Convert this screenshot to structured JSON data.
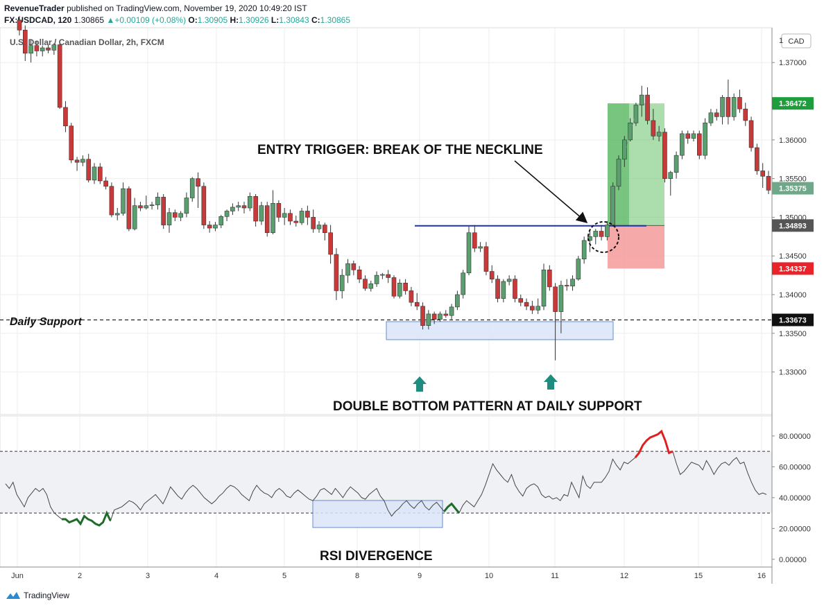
{
  "header": {
    "publisher": "RevenueTrader",
    "published_text": "published on TradingView.com, November 19, 2020 10:49:20 IST",
    "symbol": "FX:USDCAD, 120",
    "last": "1.30865",
    "change": "+0.00109 (+0.08%)",
    "o_label": "O:",
    "o": "1.30905",
    "h_label": "H:",
    "h": "1.30926",
    "l_label": "L:",
    "l": "1.30843",
    "c_label": "C:",
    "c": "1.30865"
  },
  "footer": {
    "brand": "TradingView"
  },
  "colors": {
    "up": "#5aa06e",
    "down": "#c83a3a",
    "blue_line": "#1f2fb4",
    "target_zone": "#66c16a",
    "stop_zone": "#f59a9a",
    "rsi_up": "#e02020",
    "rsi_down": "#1e6b2a",
    "box_fill": "#dbe6f8",
    "box_stroke": "#4a78c8"
  },
  "chart_data": [
    {
      "type": "candlestick",
      "title": "U.S. Dollar / Canadian Dollar, 2h, FXCM",
      "currency": "CAD",
      "ylim": [
        1.3245,
        1.3745
      ],
      "y_ticks": [
        "1.37000",
        "1.36000",
        "1.35500",
        "1.35000",
        "1.34500",
        "1.34000",
        "1.33500",
        "1.33000"
      ],
      "x_ticks": [
        "Jun",
        "2",
        "3",
        "4",
        "5",
        "8",
        "9",
        "10",
        "11",
        "12",
        "15",
        "16"
      ],
      "price_tags": [
        {
          "value": "1.36472",
          "color": "#1e9e3a"
        },
        {
          "value": "1.35375",
          "color": "#6fa889"
        },
        {
          "value": "1.34893",
          "color": "#555555"
        },
        {
          "value": "1.34337",
          "color": "#e8232a"
        },
        {
          "value": "1.33673",
          "color": "#111111"
        }
      ],
      "candles": [
        {
          "o": 1.3755,
          "h": 1.376,
          "l": 1.3735,
          "c": 1.3742
        },
        {
          "o": 1.3742,
          "h": 1.3748,
          "l": 1.3702,
          "c": 1.3712
        },
        {
          "o": 1.3712,
          "h": 1.373,
          "l": 1.37,
          "c": 1.3722
        },
        {
          "o": 1.3722,
          "h": 1.3728,
          "l": 1.3708,
          "c": 1.3715
        },
        {
          "o": 1.3715,
          "h": 1.3722,
          "l": 1.3708,
          "c": 1.3719
        },
        {
          "o": 1.3719,
          "h": 1.3724,
          "l": 1.3712,
          "c": 1.3716
        },
        {
          "o": 1.3716,
          "h": 1.3725,
          "l": 1.371,
          "c": 1.3723
        },
        {
          "o": 1.3723,
          "h": 1.3728,
          "l": 1.364,
          "c": 1.3642
        },
        {
          "o": 1.3642,
          "h": 1.365,
          "l": 1.361,
          "c": 1.3618
        },
        {
          "o": 1.3618,
          "h": 1.3622,
          "l": 1.357,
          "c": 1.3574
        },
        {
          "o": 1.3574,
          "h": 1.3578,
          "l": 1.356,
          "c": 1.3571
        },
        {
          "o": 1.3571,
          "h": 1.358,
          "l": 1.3566,
          "c": 1.3575
        },
        {
          "o": 1.3575,
          "h": 1.3582,
          "l": 1.3545,
          "c": 1.3548
        },
        {
          "o": 1.3548,
          "h": 1.357,
          "l": 1.3543,
          "c": 1.3565
        },
        {
          "o": 1.3565,
          "h": 1.357,
          "l": 1.3543,
          "c": 1.3547
        },
        {
          "o": 1.3547,
          "h": 1.3552,
          "l": 1.3536,
          "c": 1.354
        },
        {
          "o": 1.354,
          "h": 1.3545,
          "l": 1.35,
          "c": 1.3503
        },
        {
          "o": 1.3503,
          "h": 1.3512,
          "l": 1.3496,
          "c": 1.3505
        },
        {
          "o": 1.3505,
          "h": 1.3545,
          "l": 1.3502,
          "c": 1.3537
        },
        {
          "o": 1.3537,
          "h": 1.354,
          "l": 1.3482,
          "c": 1.3485
        },
        {
          "o": 1.3485,
          "h": 1.3525,
          "l": 1.3483,
          "c": 1.3515
        },
        {
          "o": 1.3515,
          "h": 1.352,
          "l": 1.3508,
          "c": 1.3512
        },
        {
          "o": 1.3512,
          "h": 1.3528,
          "l": 1.351,
          "c": 1.3515
        },
        {
          "o": 1.3515,
          "h": 1.352,
          "l": 1.351,
          "c": 1.3516
        },
        {
          "o": 1.3516,
          "h": 1.3532,
          "l": 1.351,
          "c": 1.3526
        },
        {
          "o": 1.3526,
          "h": 1.353,
          "l": 1.3485,
          "c": 1.349
        },
        {
          "o": 1.349,
          "h": 1.3512,
          "l": 1.348,
          "c": 1.3506
        },
        {
          "o": 1.3506,
          "h": 1.351,
          "l": 1.3495,
          "c": 1.35
        },
        {
          "o": 1.35,
          "h": 1.3508,
          "l": 1.3495,
          "c": 1.3505
        },
        {
          "o": 1.3505,
          "h": 1.3532,
          "l": 1.35,
          "c": 1.3525
        },
        {
          "o": 1.3525,
          "h": 1.3552,
          "l": 1.352,
          "c": 1.355
        },
        {
          "o": 1.355,
          "h": 1.3558,
          "l": 1.3512,
          "c": 1.354
        },
        {
          "o": 1.354,
          "h": 1.3545,
          "l": 1.3485,
          "c": 1.349
        },
        {
          "o": 1.349,
          "h": 1.3495,
          "l": 1.348,
          "c": 1.3486
        },
        {
          "o": 1.3486,
          "h": 1.3494,
          "l": 1.3482,
          "c": 1.349
        },
        {
          "o": 1.349,
          "h": 1.3503,
          "l": 1.3486,
          "c": 1.3501
        },
        {
          "o": 1.3501,
          "h": 1.351,
          "l": 1.3495,
          "c": 1.3508
        },
        {
          "o": 1.3508,
          "h": 1.3518,
          "l": 1.3503,
          "c": 1.3513
        },
        {
          "o": 1.3513,
          "h": 1.352,
          "l": 1.3508,
          "c": 1.3515
        },
        {
          "o": 1.3515,
          "h": 1.352,
          "l": 1.3505,
          "c": 1.3512
        },
        {
          "o": 1.3512,
          "h": 1.3532,
          "l": 1.3508,
          "c": 1.3527
        },
        {
          "o": 1.3527,
          "h": 1.353,
          "l": 1.3488,
          "c": 1.3495
        },
        {
          "o": 1.3495,
          "h": 1.352,
          "l": 1.349,
          "c": 1.3515
        },
        {
          "o": 1.3515,
          "h": 1.352,
          "l": 1.3475,
          "c": 1.348
        },
        {
          "o": 1.348,
          "h": 1.3535,
          "l": 1.3478,
          "c": 1.3518
        },
        {
          "o": 1.3518,
          "h": 1.3522,
          "l": 1.3494,
          "c": 1.35
        },
        {
          "o": 1.35,
          "h": 1.3512,
          "l": 1.349,
          "c": 1.3505
        },
        {
          "o": 1.3505,
          "h": 1.351,
          "l": 1.349,
          "c": 1.3495
        },
        {
          "o": 1.3495,
          "h": 1.3502,
          "l": 1.3488,
          "c": 1.3493
        },
        {
          "o": 1.3493,
          "h": 1.3512,
          "l": 1.349,
          "c": 1.3508
        },
        {
          "o": 1.3508,
          "h": 1.3515,
          "l": 1.349,
          "c": 1.35
        },
        {
          "o": 1.35,
          "h": 1.351,
          "l": 1.348,
          "c": 1.3485
        },
        {
          "o": 1.3485,
          "h": 1.3495,
          "l": 1.348,
          "c": 1.349
        },
        {
          "o": 1.349,
          "h": 1.3493,
          "l": 1.347,
          "c": 1.348
        },
        {
          "o": 1.348,
          "h": 1.349,
          "l": 1.344,
          "c": 1.3452
        },
        {
          "o": 1.3452,
          "h": 1.346,
          "l": 1.3393,
          "c": 1.3405
        },
        {
          "o": 1.3405,
          "h": 1.3433,
          "l": 1.3395,
          "c": 1.3425
        },
        {
          "o": 1.3425,
          "h": 1.3446,
          "l": 1.3415,
          "c": 1.344
        },
        {
          "o": 1.344,
          "h": 1.3444,
          "l": 1.3425,
          "c": 1.3432
        },
        {
          "o": 1.3432,
          "h": 1.3437,
          "l": 1.3415,
          "c": 1.342
        },
        {
          "o": 1.342,
          "h": 1.3425,
          "l": 1.3405,
          "c": 1.3408
        },
        {
          "o": 1.3408,
          "h": 1.3418,
          "l": 1.3404,
          "c": 1.3414
        },
        {
          "o": 1.3414,
          "h": 1.343,
          "l": 1.341,
          "c": 1.3425
        },
        {
          "o": 1.3425,
          "h": 1.3428,
          "l": 1.342,
          "c": 1.3426
        },
        {
          "o": 1.3426,
          "h": 1.3432,
          "l": 1.3415,
          "c": 1.3422
        },
        {
          "o": 1.3422,
          "h": 1.3425,
          "l": 1.3395,
          "c": 1.3398
        },
        {
          "o": 1.3398,
          "h": 1.342,
          "l": 1.3395,
          "c": 1.3415
        },
        {
          "o": 1.3415,
          "h": 1.342,
          "l": 1.34,
          "c": 1.3405
        },
        {
          "o": 1.3405,
          "h": 1.341,
          "l": 1.3385,
          "c": 1.339
        },
        {
          "o": 1.339,
          "h": 1.3402,
          "l": 1.338,
          "c": 1.3385
        },
        {
          "o": 1.3385,
          "h": 1.339,
          "l": 1.3355,
          "c": 1.336
        },
        {
          "o": 1.336,
          "h": 1.338,
          "l": 1.3355,
          "c": 1.3375
        },
        {
          "o": 1.3375,
          "h": 1.3378,
          "l": 1.3362,
          "c": 1.3368
        },
        {
          "o": 1.3368,
          "h": 1.3378,
          "l": 1.3365,
          "c": 1.3375
        },
        {
          "o": 1.3375,
          "h": 1.338,
          "l": 1.337,
          "c": 1.3373
        },
        {
          "o": 1.3373,
          "h": 1.3388,
          "l": 1.3368,
          "c": 1.3384
        },
        {
          "o": 1.3384,
          "h": 1.3405,
          "l": 1.338,
          "c": 1.34
        },
        {
          "o": 1.34,
          "h": 1.3432,
          "l": 1.3395,
          "c": 1.3428
        },
        {
          "o": 1.3428,
          "h": 1.3488,
          "l": 1.3425,
          "c": 1.348
        },
        {
          "o": 1.348,
          "h": 1.349,
          "l": 1.3455,
          "c": 1.346
        },
        {
          "o": 1.346,
          "h": 1.3468,
          "l": 1.3455,
          "c": 1.3462
        },
        {
          "o": 1.3462,
          "h": 1.3468,
          "l": 1.3425,
          "c": 1.343
        },
        {
          "o": 1.343,
          "h": 1.3438,
          "l": 1.3415,
          "c": 1.342
        },
        {
          "o": 1.342,
          "h": 1.3425,
          "l": 1.339,
          "c": 1.3395
        },
        {
          "o": 1.3395,
          "h": 1.342,
          "l": 1.339,
          "c": 1.3417
        },
        {
          "o": 1.3417,
          "h": 1.3425,
          "l": 1.3412,
          "c": 1.342
        },
        {
          "o": 1.342,
          "h": 1.3425,
          "l": 1.339,
          "c": 1.3395
        },
        {
          "o": 1.3395,
          "h": 1.34,
          "l": 1.3385,
          "c": 1.339
        },
        {
          "o": 1.339,
          "h": 1.3395,
          "l": 1.338,
          "c": 1.3385
        },
        {
          "o": 1.3385,
          "h": 1.3392,
          "l": 1.3375,
          "c": 1.338
        },
        {
          "o": 1.338,
          "h": 1.3395,
          "l": 1.3375,
          "c": 1.3385
        },
        {
          "o": 1.3385,
          "h": 1.344,
          "l": 1.338,
          "c": 1.3432
        },
        {
          "o": 1.3432,
          "h": 1.3438,
          "l": 1.3405,
          "c": 1.341
        },
        {
          "o": 1.341,
          "h": 1.3415,
          "l": 1.3315,
          "c": 1.3378
        },
        {
          "o": 1.3378,
          "h": 1.3418,
          "l": 1.335,
          "c": 1.3412
        },
        {
          "o": 1.3412,
          "h": 1.342,
          "l": 1.3405,
          "c": 1.3411
        },
        {
          "o": 1.3411,
          "h": 1.3425,
          "l": 1.3405,
          "c": 1.342
        },
        {
          "o": 1.342,
          "h": 1.345,
          "l": 1.3418,
          "c": 1.3446
        },
        {
          "o": 1.3446,
          "h": 1.3475,
          "l": 1.344,
          "c": 1.347
        },
        {
          "o": 1.347,
          "h": 1.3482,
          "l": 1.3455,
          "c": 1.3475
        },
        {
          "o": 1.3475,
          "h": 1.3485,
          "l": 1.3465,
          "c": 1.3482
        },
        {
          "o": 1.3482,
          "h": 1.349,
          "l": 1.347,
          "c": 1.3475
        },
        {
          "o": 1.3475,
          "h": 1.3495,
          "l": 1.347,
          "c": 1.349
        },
        {
          "o": 1.349,
          "h": 1.3545,
          "l": 1.3488,
          "c": 1.354
        },
        {
          "o": 1.354,
          "h": 1.358,
          "l": 1.3535,
          "c": 1.3575
        },
        {
          "o": 1.3575,
          "h": 1.3605,
          "l": 1.3565,
          "c": 1.36
        },
        {
          "o": 1.36,
          "h": 1.3628,
          "l": 1.3598,
          "c": 1.3622
        },
        {
          "o": 1.3622,
          "h": 1.3648,
          "l": 1.3618,
          "c": 1.3645
        },
        {
          "o": 1.3645,
          "h": 1.367,
          "l": 1.363,
          "c": 1.3658
        },
        {
          "o": 1.3658,
          "h": 1.3668,
          "l": 1.362,
          "c": 1.3625
        },
        {
          "o": 1.3625,
          "h": 1.364,
          "l": 1.36,
          "c": 1.3605
        },
        {
          "o": 1.3605,
          "h": 1.3618,
          "l": 1.3598,
          "c": 1.361
        },
        {
          "o": 1.361,
          "h": 1.3615,
          "l": 1.3545,
          "c": 1.355
        },
        {
          "o": 1.355,
          "h": 1.356,
          "l": 1.3528,
          "c": 1.3558
        },
        {
          "o": 1.3558,
          "h": 1.3585,
          "l": 1.355,
          "c": 1.358
        },
        {
          "o": 1.358,
          "h": 1.3612,
          "l": 1.3575,
          "c": 1.3608
        },
        {
          "o": 1.3608,
          "h": 1.3612,
          "l": 1.3595,
          "c": 1.3602
        },
        {
          "o": 1.3602,
          "h": 1.3612,
          "l": 1.3598,
          "c": 1.3608
        },
        {
          "o": 1.3608,
          "h": 1.3612,
          "l": 1.3575,
          "c": 1.358
        },
        {
          "o": 1.358,
          "h": 1.3628,
          "l": 1.3575,
          "c": 1.3622
        },
        {
          "o": 1.3622,
          "h": 1.364,
          "l": 1.3618,
          "c": 1.3635
        },
        {
          "o": 1.3635,
          "h": 1.364,
          "l": 1.3625,
          "c": 1.363
        },
        {
          "o": 1.363,
          "h": 1.3658,
          "l": 1.362,
          "c": 1.3655
        },
        {
          "o": 1.3655,
          "h": 1.3678,
          "l": 1.362,
          "c": 1.363
        },
        {
          "o": 1.363,
          "h": 1.366,
          "l": 1.3625,
          "c": 1.3655
        },
        {
          "o": 1.3655,
          "h": 1.3665,
          "l": 1.3635,
          "c": 1.364
        },
        {
          "o": 1.364,
          "h": 1.3648,
          "l": 1.3618,
          "c": 1.3625
        },
        {
          "o": 1.3625,
          "h": 1.363,
          "l": 1.3585,
          "c": 1.359
        },
        {
          "o": 1.359,
          "h": 1.3595,
          "l": 1.3555,
          "c": 1.356
        },
        {
          "o": 1.356,
          "h": 1.357,
          "l": 1.3538,
          "c": 1.3553
        },
        {
          "o": 1.3553,
          "h": 1.356,
          "l": 1.353,
          "c": 1.3535
        }
      ],
      "lines": {
        "neckline": 1.3489,
        "daily_support": 1.33673,
        "target": 1.36472,
        "stop": 1.34337,
        "entry": 1.34893
      },
      "annotations": {
        "entry": "ENTRY TRIGGER: BREAK OF THE NECKLINE",
        "pattern": "DOUBLE BOTTOM PATTERN AT DAILY SUPPORT",
        "support_label": "Daily Support"
      }
    },
    {
      "type": "line",
      "title": "RSI DIVERGENCE",
      "ylim": [
        -5,
        93
      ],
      "y_ticks": [
        "80.00000",
        "60.00000",
        "40.00000",
        "20.00000",
        "0.00000"
      ],
      "levels": [
        70,
        30
      ],
      "values": [
        49,
        46,
        50,
        42,
        38,
        34,
        40,
        43,
        46,
        44,
        46,
        42,
        34,
        30,
        28,
        26,
        26,
        24,
        25,
        26,
        23,
        28,
        26,
        25,
        23,
        22,
        24,
        30,
        25,
        32,
        33,
        34,
        36,
        38,
        37,
        35,
        32,
        36,
        38,
        40,
        42,
        39,
        36,
        41,
        47,
        44,
        41,
        39,
        43,
        46,
        48,
        46,
        43,
        40,
        38,
        36,
        38,
        41,
        43,
        46,
        48,
        47,
        45,
        42,
        40,
        38,
        44,
        48,
        45,
        43,
        42,
        40,
        44,
        46,
        44,
        41,
        40,
        43,
        45,
        43,
        41,
        39,
        38,
        41,
        45,
        46,
        44,
        42,
        46,
        43,
        40,
        44,
        47,
        45,
        43,
        40,
        39,
        42,
        44,
        46,
        41,
        38,
        32,
        28,
        31,
        33,
        36,
        38,
        35,
        33,
        36,
        38,
        34,
        32,
        35,
        37,
        34,
        31,
        34,
        36,
        33,
        30,
        35,
        38,
        36,
        34,
        38,
        42,
        48,
        55,
        62,
        58,
        55,
        52,
        50,
        55,
        48,
        44,
        41,
        46,
        48,
        49,
        47,
        42,
        40,
        41,
        39,
        40,
        38,
        42,
        41,
        50,
        45,
        40,
        54,
        48,
        46,
        50,
        50,
        50,
        53,
        57,
        65,
        61,
        58,
        63,
        62,
        64,
        66,
        69,
        74,
        77,
        79,
        80,
        81,
        83,
        77,
        69,
        70,
        62,
        55,
        57,
        60,
        63,
        62,
        61,
        58,
        64,
        60,
        55,
        59,
        62,
        63,
        61,
        64,
        66,
        62,
        63,
        56,
        50,
        45,
        42,
        43,
        42
      ],
      "bearish_segment": [
        168,
        178
      ],
      "bullish_segments": [
        [
          15,
          28
        ],
        [
          117,
          121
        ]
      ],
      "box_start": 117,
      "box_end": 157,
      "annotation": "RSI DIVERGENCE"
    }
  ]
}
